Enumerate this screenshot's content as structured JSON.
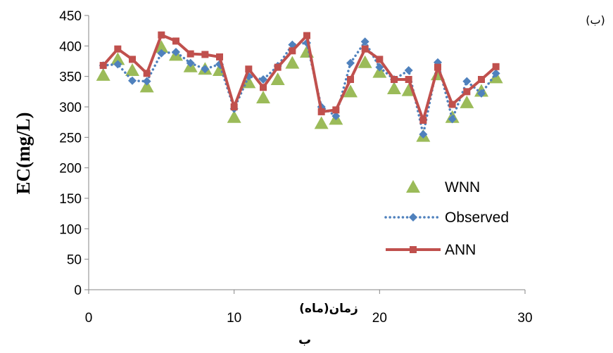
{
  "panel_label": "(ب)",
  "caption": "ب",
  "chart_data": {
    "type": "line",
    "title": "",
    "xlabel": "زمان(ماه)",
    "ylabel": "EC(mg/L)",
    "xlim": [
      0,
      30
    ],
    "ylim": [
      0,
      450
    ],
    "xticks": [
      0,
      10,
      20,
      30
    ],
    "yticks": [
      0,
      50,
      100,
      150,
      200,
      250,
      300,
      350,
      400,
      450
    ],
    "grid": false,
    "legend_position": "right",
    "x": [
      1,
      2,
      3,
      4,
      5,
      6,
      7,
      8,
      9,
      10,
      11,
      12,
      13,
      14,
      15,
      16,
      17,
      18,
      19,
      20,
      21,
      22,
      23,
      24,
      25,
      26,
      27,
      28
    ],
    "series": [
      {
        "name": "WNN",
        "style": "markers",
        "marker": "triangle",
        "color": "#9bbb59",
        "values": [
          352,
          378,
          360,
          333,
          398,
          385,
          366,
          362,
          360,
          283,
          340,
          315,
          345,
          372,
          390,
          273,
          280,
          325,
          373,
          357,
          330,
          327,
          252,
          353,
          283,
          307,
          326,
          348
        ]
      },
      {
        "name": "Observed",
        "style": "dotted",
        "marker": "diamond",
        "color": "#4f81bd",
        "values": [
          368,
          370,
          343,
          342,
          388,
          390,
          372,
          362,
          370,
          297,
          350,
          345,
          367,
          402,
          405,
          300,
          285,
          372,
          407,
          365,
          345,
          360,
          255,
          373,
          280,
          342,
          322,
          355
        ]
      },
      {
        "name": "ANN",
        "style": "solid",
        "marker": "square",
        "color": "#c0504d",
        "values": [
          368,
          395,
          378,
          355,
          418,
          408,
          387,
          386,
          382,
          300,
          362,
          332,
          365,
          392,
          417,
          292,
          295,
          345,
          395,
          378,
          345,
          345,
          278,
          365,
          304,
          325,
          345,
          366
        ]
      }
    ]
  }
}
